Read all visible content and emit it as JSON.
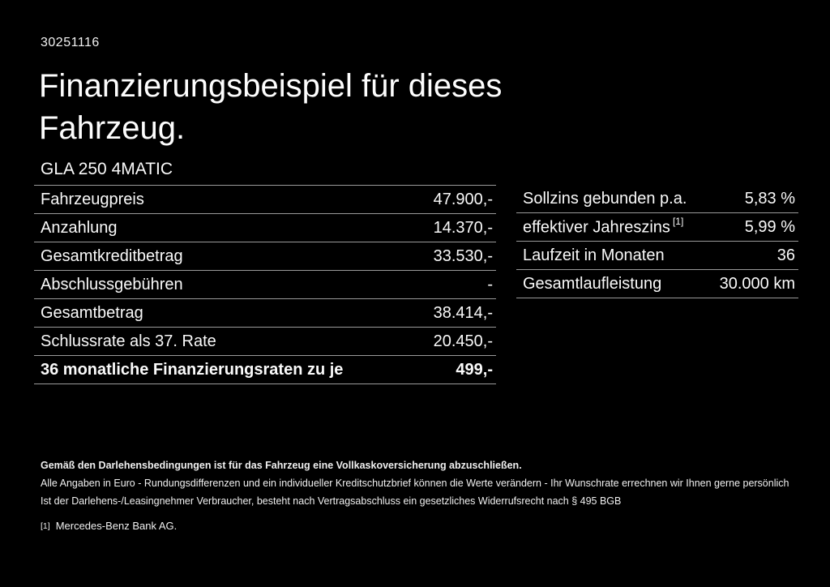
{
  "page": {
    "doc_id": "30251116",
    "title": "Finanzierungsbeispiel für dieses Fahrzeug.",
    "vehicle_model": "GLA 250 4MATIC"
  },
  "finance_table": {
    "rows": [
      {
        "label": "Fahrzeugpreis",
        "value": "47.900,-"
      },
      {
        "label": "Anzahlung",
        "value": "14.370,-"
      },
      {
        "label": "Gesamtkreditbetrag",
        "value": "33.530,-"
      },
      {
        "label": "Abschlussgebühren",
        "value": "-"
      },
      {
        "label": "Gesamtbetrag",
        "value": "38.414,-"
      },
      {
        "label": "Schlussrate als 37. Rate",
        "value": "20.450,-"
      },
      {
        "label": "36 monatliche Finanzierungsraten zu je",
        "value": "499,-"
      }
    ]
  },
  "conditions_table": {
    "rows": [
      {
        "label": "Sollzins gebunden p.a.",
        "value": "5,83 %"
      },
      {
        "label": "effektiver Jahreszins",
        "sup": "[1]",
        "value": "5,99 %"
      },
      {
        "label": "Laufzeit in Monaten",
        "value": "36"
      },
      {
        "label": "Gesamtlaufleistung",
        "value": "30.000 km"
      }
    ]
  },
  "disclaimer": {
    "line1": "Gemäß den Darlehensbedingungen ist für das Fahrzeug eine Vollkaskoversicherung abzuschließen.",
    "line2": "Alle Angaben in Euro - Rundungsdifferenzen und ein individueller Kreditschutzbrief können die Werte verändern - Ihr Wunschrate errechnen wir Ihnen gerne persönlich",
    "line3": "Ist der Darlehens-/Leasingnehmer Verbraucher, besteht nach Vertragsabschluss ein gesetzliches Widerrufsrecht nach § 495 BGB",
    "footnote_marker": "[1]",
    "footnote_text": "Mercedes-Benz Bank AG."
  },
  "colors": {
    "background": "#000000",
    "text": "#ffffff",
    "separator": "#9a9a9a"
  }
}
